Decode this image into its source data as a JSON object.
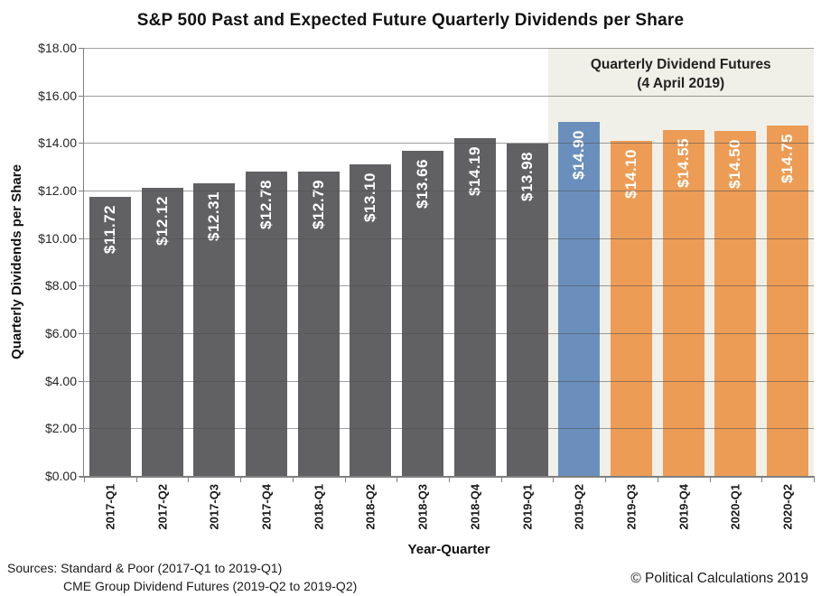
{
  "title": "S&P 500 Past and Expected Future Quarterly Dividends per Share",
  "chart_data": {
    "type": "bar",
    "title": "S&P 500 Past and Expected Future Quarterly Dividends per Share",
    "xlabel": "Year-Quarter",
    "ylabel": "Quarterly Dividends per Share",
    "ylim": [
      0,
      18
    ],
    "ytick_step": 2,
    "ytick_labels": [
      "$0.00",
      "$2.00",
      "$4.00",
      "$6.00",
      "$8.00",
      "$10.00",
      "$12.00",
      "$14.00",
      "$16.00",
      "$18.00"
    ],
    "grid": true,
    "legend_position": "none",
    "categories": [
      "2017-Q1",
      "2017-Q2",
      "2017-Q3",
      "2017-Q4",
      "2018-Q1",
      "2018-Q2",
      "2018-Q3",
      "2018-Q4",
      "2019-Q1",
      "2019-Q2",
      "2019-Q3",
      "2019-Q4",
      "2020-Q1",
      "2020-Q2"
    ],
    "values": [
      11.72,
      12.12,
      12.31,
      12.78,
      12.79,
      13.1,
      13.66,
      14.19,
      13.98,
      14.9,
      14.1,
      14.55,
      14.5,
      14.75
    ],
    "bar_labels": [
      "$11.72",
      "$12.12",
      "$12.31",
      "$12.78",
      "$12.79",
      "$13.10",
      "$13.66",
      "$14.19",
      "$13.98",
      "$14.90",
      "$14.10",
      "$14.55",
      "$14.50",
      "$14.75"
    ],
    "bar_groups": [
      "past",
      "past",
      "past",
      "past",
      "past",
      "past",
      "past",
      "past",
      "past",
      "futures_lead",
      "futures",
      "futures",
      "futures",
      "futures"
    ],
    "colors": {
      "past_bar": "#616164",
      "futures_lead_bar": "#6A8FBC",
      "futures_bar": "#EC9C55",
      "futures_region_bg": "#F0EFE8",
      "bar_label_text": "#FFFFFF",
      "axis_line": "#7F7F7F"
    },
    "futures_region": {
      "start_category": "2019-Q2",
      "heading_line1": "Quarterly Dividend Futures",
      "heading_line2": "(4 April 2019)"
    }
  },
  "footer": {
    "sources_line1": "Sources: Standard & Poor (2017-Q1 to 2019-Q1)",
    "sources_line2": "CME Group Dividend Futures (2019-Q2 to 2019-Q2)",
    "copyright": "© Political Calculations 2019"
  }
}
